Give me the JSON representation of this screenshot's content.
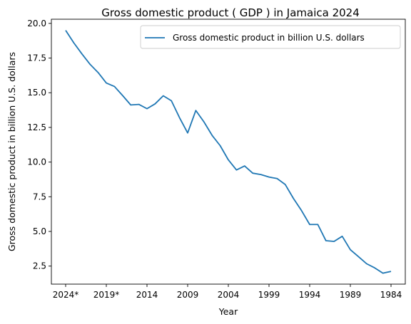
{
  "chart_data": {
    "type": "line",
    "title": "Gross domestic product ( GDP ) in Jamaica 2024",
    "xlabel": "Year",
    "ylabel": "Gross domestic product in billion U.S. dollars",
    "x": [
      "2024*",
      "2023*",
      "2022*",
      "2021*",
      "2020*",
      "2019*",
      "2018",
      "2017",
      "2016",
      "2015",
      "2014",
      "2013",
      "2012",
      "2011",
      "2010",
      "2009",
      "2008",
      "2007",
      "2006",
      "2005",
      "2004",
      "2003",
      "2002",
      "2001",
      "2000",
      "1999",
      "1998",
      "1997",
      "1996",
      "1995",
      "1994",
      "1993",
      "1992",
      "1991",
      "1990",
      "1989",
      "1988",
      "1987",
      "1986",
      "1985",
      "1984"
    ],
    "x_tick_labels": [
      "2024*",
      "2019*",
      "2014",
      "2009",
      "2004",
      "1999",
      "1994",
      "1989",
      "1984"
    ],
    "y_ticks": [
      2.5,
      5.0,
      7.5,
      10.0,
      12.5,
      15.0,
      17.5,
      20.0
    ],
    "y_tick_labels": [
      "2.5",
      "5.0",
      "7.5",
      "10.0",
      "12.5",
      "15.0",
      "17.5",
      "20.0"
    ],
    "ylim": [
      1.2,
      20.3
    ],
    "grid": false,
    "legend_position": "top-right",
    "series": [
      {
        "name": "Gross domestic product in billion U.S. dollars",
        "color": "#1f77b4",
        "values": [
          19.5,
          18.6,
          17.8,
          17.05,
          16.45,
          15.7,
          15.45,
          14.8,
          14.12,
          14.16,
          13.85,
          14.2,
          14.78,
          14.42,
          13.2,
          12.1,
          13.72,
          12.9,
          11.93,
          11.18,
          10.16,
          9.43,
          9.72,
          9.2,
          9.1,
          8.92,
          8.81,
          8.38,
          7.38,
          6.5,
          5.5,
          5.5,
          4.33,
          4.28,
          4.65,
          3.68,
          3.18,
          2.67,
          2.37,
          1.99,
          2.12
        ]
      }
    ]
  }
}
